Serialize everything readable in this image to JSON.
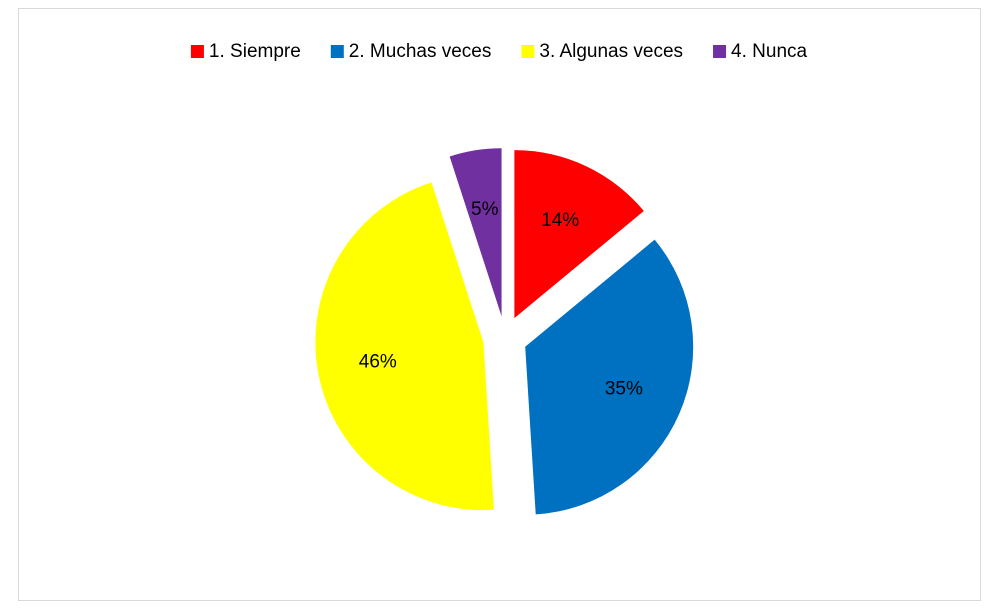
{
  "chart_data": {
    "type": "pie",
    "categories": [
      "1. Siempre",
      "2. Muchas veces",
      "3. Algunas veces",
      "4. Nunca"
    ],
    "values": [
      14,
      35,
      46,
      5
    ],
    "value_labels": [
      "14%",
      "35%",
      "46%",
      "5%"
    ],
    "colors": [
      "#ff0000",
      "#0070c0",
      "#ffff00",
      "#7030a0"
    ],
    "legend": "top"
  }
}
